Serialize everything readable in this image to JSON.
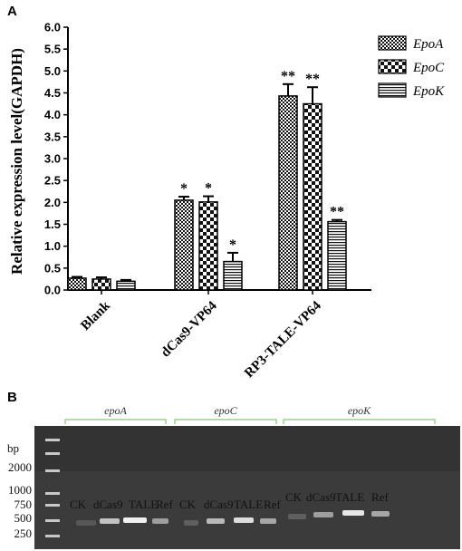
{
  "panel_a_label": "A",
  "panel_b_label": "B",
  "chart_data": {
    "type": "bar",
    "title": "",
    "ylabel": "Relative expression level(GAPDH)",
    "xlabel": "",
    "ylim": [
      0,
      6.0
    ],
    "yticks": [
      "0.0",
      "0.5",
      "1.0",
      "1.5",
      "2.0",
      "2.5",
      "3.0",
      "3.5",
      "4.0",
      "4.5",
      "5.0",
      "5.5",
      "6.0"
    ],
    "categories": [
      "Blank",
      "dCas9-VP64",
      "RP3-TALE-VP64"
    ],
    "legend_position": "top-right",
    "grid": false,
    "series": [
      {
        "name": "EpoA",
        "pattern": "checker-small",
        "values": [
          0.27,
          2.05,
          4.43
        ],
        "errors": [
          0.03,
          0.08,
          0.27
        ],
        "significance": [
          "",
          "*",
          "**"
        ]
      },
      {
        "name": "EpoC",
        "pattern": "checker-large",
        "values": [
          0.25,
          2.01,
          4.25
        ],
        "errors": [
          0.04,
          0.13,
          0.38
        ],
        "significance": [
          "",
          "*",
          "**"
        ]
      },
      {
        "name": "EpoK",
        "pattern": "horizontal-lines",
        "values": [
          0.2,
          0.65,
          1.56
        ],
        "errors": [
          0.03,
          0.2,
          0.04
        ],
        "significance": [
          "",
          "*",
          "**"
        ]
      }
    ]
  },
  "gel": {
    "groups": [
      "epoA",
      "epoC",
      "epoK"
    ],
    "bp_header": "bp",
    "ladder_labels": [
      "2000",
      "1000",
      "750",
      "500",
      "250"
    ],
    "lane_labels": [
      "CK",
      "dCas9",
      "TALE",
      "Ref",
      "CK",
      "dCas9",
      "TALE",
      "Ref",
      "CK",
      "dCas9",
      "TALE",
      "Ref"
    ]
  },
  "colors": {
    "gel_background": "#3a3a3a",
    "group_bracket": "#7fcf6a",
    "band": "#f0f0f0"
  }
}
